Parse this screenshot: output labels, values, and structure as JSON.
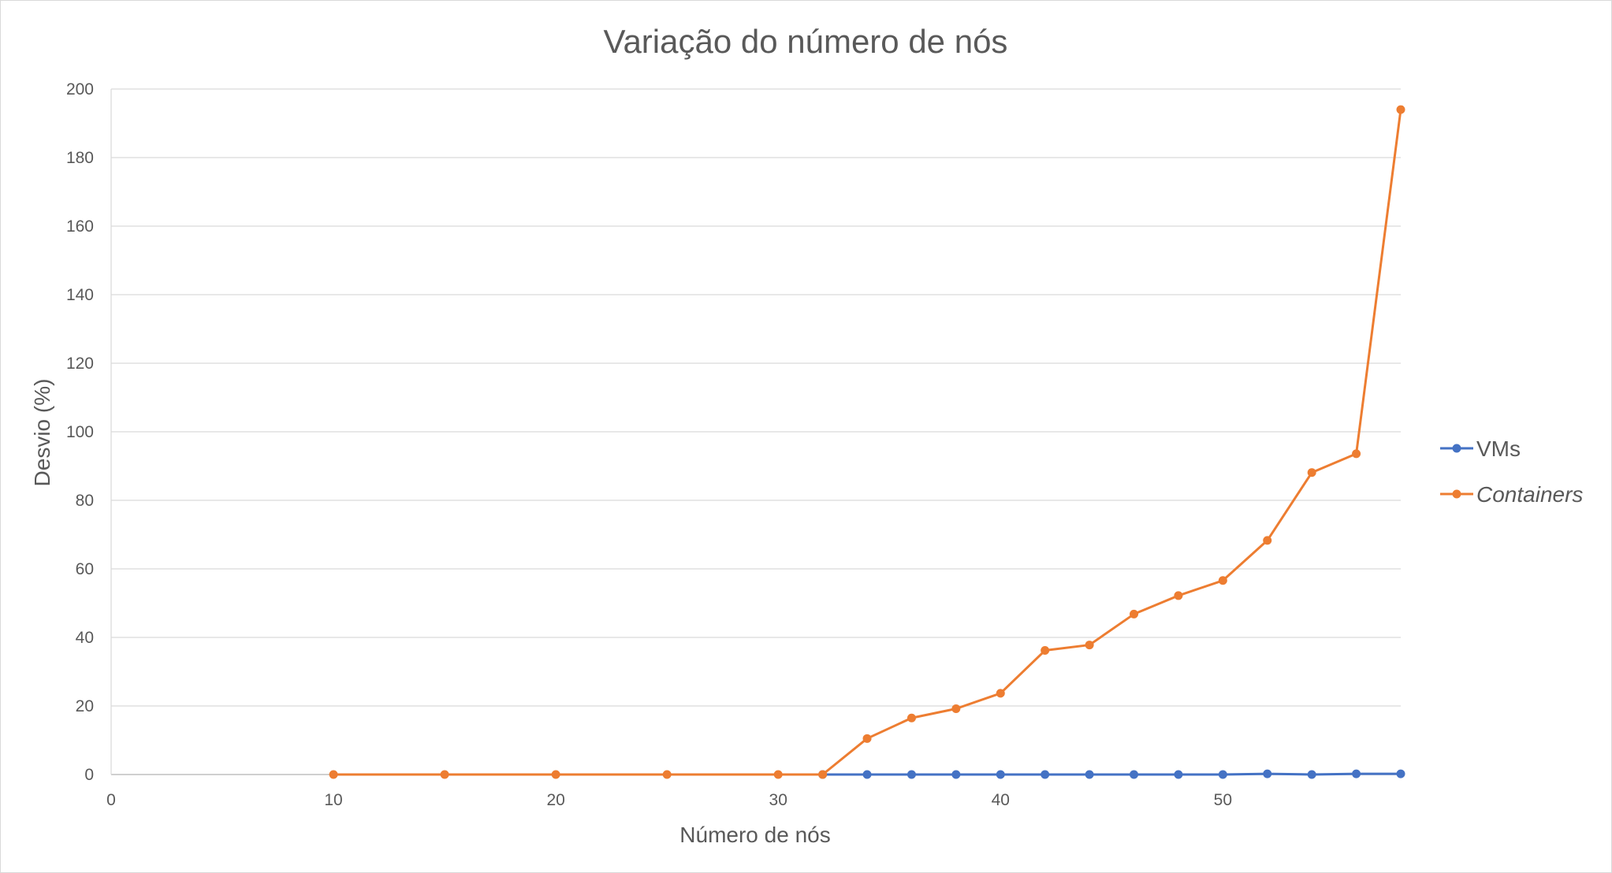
{
  "chart_data": {
    "type": "line",
    "title": "Variação do número de nós",
    "xlabel": "Número de nós",
    "ylabel": "Desvio (%)",
    "xlim": [
      0,
      58
    ],
    "ylim": [
      0,
      200
    ],
    "x_ticks": [
      0,
      10,
      20,
      30,
      40,
      50
    ],
    "y_ticks": [
      0,
      20,
      40,
      60,
      80,
      100,
      120,
      140,
      160,
      180,
      200
    ],
    "grid": "horizontal",
    "legend_position": "right",
    "series": [
      {
        "name": "VMs",
        "color": "#4472c4",
        "x": [
          32,
          34,
          36,
          38,
          40,
          42,
          44,
          46,
          48,
          50,
          52,
          54,
          56,
          58
        ],
        "y": [
          0,
          0,
          0,
          0,
          0,
          0,
          0,
          0,
          0,
          0,
          0.2,
          0,
          0.2,
          0.2
        ]
      },
      {
        "name": "Containers",
        "color": "#ed7d31",
        "italic": true,
        "x": [
          10,
          15,
          20,
          25,
          30,
          32,
          34,
          36,
          38,
          40,
          42,
          44,
          46,
          48,
          50,
          52,
          54,
          56,
          58
        ],
        "y": [
          0,
          0,
          0,
          0,
          0,
          0,
          10.5,
          16.5,
          19.2,
          23.7,
          36.2,
          37.8,
          46.8,
          52.2,
          56.6,
          68.3,
          88.1,
          93.6,
          194
        ]
      }
    ]
  }
}
